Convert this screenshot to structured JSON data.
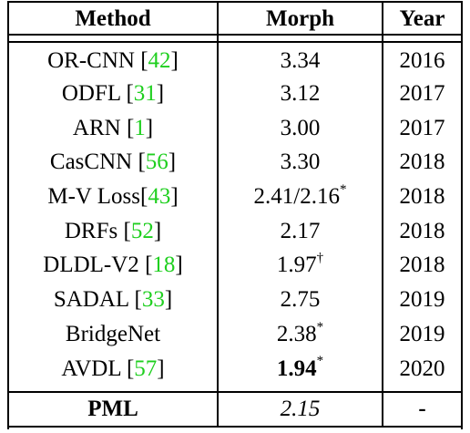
{
  "table": {
    "headers": [
      "Method",
      "Morph",
      "Year"
    ],
    "rows": [
      {
        "method": "OR-CNN ",
        "ref": "42",
        "morph": "3.34",
        "mark": "",
        "year": "2016"
      },
      {
        "method": "ODFL ",
        "ref": "31",
        "morph": "3.12",
        "mark": "",
        "year": "2017"
      },
      {
        "method": "ARN ",
        "ref": "1",
        "morph": "3.00",
        "mark": "",
        "year": "2017"
      },
      {
        "method": "CasCNN ",
        "ref": "56",
        "morph": "3.30",
        "mark": "",
        "year": "2018"
      },
      {
        "method": "M-V Loss",
        "ref": "43",
        "morph": "2.41/2.16",
        "mark": "*",
        "year": "2018"
      },
      {
        "method": "DRFs ",
        "ref": "52",
        "morph": "2.17",
        "mark": "",
        "year": "2018"
      },
      {
        "method": "DLDL-V2 ",
        "ref": "18",
        "morph": "1.97",
        "mark": "†",
        "year": "2018"
      },
      {
        "method": "SADAL ",
        "ref": "33",
        "morph": "2.75",
        "mark": "",
        "year": "2019"
      },
      {
        "method": "BridgeNet",
        "ref": "",
        "morph": "2.38",
        "mark": "*",
        "year": "2019"
      },
      {
        "method": "AVDL ",
        "ref": "57",
        "morph": "1.94",
        "mark": "*",
        "year": "2020"
      }
    ],
    "footer": {
      "method": "PML",
      "morph": "2.15",
      "year": "-"
    }
  },
  "colors": {
    "ref_link": "#1fcf1f"
  }
}
